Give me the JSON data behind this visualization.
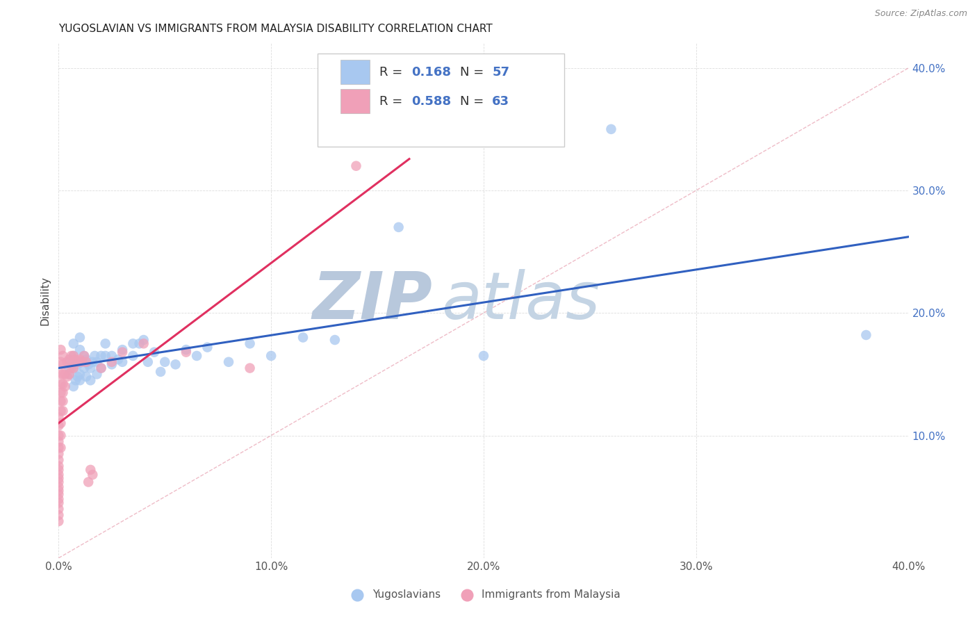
{
  "title": "YUGOSLAVIAN VS IMMIGRANTS FROM MALAYSIA DISABILITY CORRELATION CHART",
  "source": "Source: ZipAtlas.com",
  "ylabel": "Disability",
  "xlim": [
    0.0,
    0.4
  ],
  "ylim": [
    0.0,
    0.42
  ],
  "yticks": [
    0.0,
    0.1,
    0.2,
    0.3,
    0.4
  ],
  "xticks": [
    0.0,
    0.1,
    0.2,
    0.3,
    0.4
  ],
  "xtick_labels": [
    "0.0%",
    "10.0%",
    "20.0%",
    "30.0%",
    "40.0%"
  ],
  "ytick_labels_right": [
    "",
    "10.0%",
    "20.0%",
    "30.0%",
    "40.0%"
  ],
  "blue_R": 0.168,
  "blue_N": 57,
  "pink_R": 0.588,
  "pink_N": 63,
  "blue_color": "#A8C8F0",
  "pink_color": "#F0A0B8",
  "blue_line_color": "#3060C0",
  "pink_line_color": "#E03060",
  "diag_line_color": "#E8A0B0",
  "watermark_zip_color": "#C0D0E8",
  "watermark_atlas_color": "#B8CCE4",
  "legend_label_blue": "Yugoslavians",
  "legend_label_pink": "Immigrants from Malaysia",
  "blue_scatter_x": [
    0.005,
    0.005,
    0.005,
    0.007,
    0.007,
    0.007,
    0.007,
    0.008,
    0.008,
    0.009,
    0.009,
    0.01,
    0.01,
    0.01,
    0.01,
    0.01,
    0.012,
    0.012,
    0.013,
    0.013,
    0.014,
    0.015,
    0.015,
    0.016,
    0.017,
    0.018,
    0.018,
    0.02,
    0.02,
    0.022,
    0.022,
    0.025,
    0.025,
    0.028,
    0.03,
    0.03,
    0.035,
    0.035,
    0.038,
    0.04,
    0.042,
    0.045,
    0.048,
    0.05,
    0.055,
    0.06,
    0.065,
    0.07,
    0.08,
    0.09,
    0.1,
    0.115,
    0.13,
    0.16,
    0.2,
    0.26,
    0.38
  ],
  "blue_scatter_y": [
    0.15,
    0.155,
    0.16,
    0.14,
    0.155,
    0.165,
    0.175,
    0.145,
    0.16,
    0.148,
    0.158,
    0.145,
    0.15,
    0.16,
    0.17,
    0.18,
    0.155,
    0.165,
    0.148,
    0.162,
    0.158,
    0.145,
    0.155,
    0.16,
    0.165,
    0.15,
    0.16,
    0.155,
    0.165,
    0.165,
    0.175,
    0.158,
    0.165,
    0.162,
    0.16,
    0.17,
    0.165,
    0.175,
    0.175,
    0.178,
    0.16,
    0.168,
    0.152,
    0.16,
    0.158,
    0.17,
    0.165,
    0.172,
    0.16,
    0.175,
    0.165,
    0.18,
    0.178,
    0.27,
    0.165,
    0.35,
    0.182
  ],
  "pink_scatter_x": [
    0.0,
    0.0,
    0.0,
    0.0,
    0.0,
    0.0,
    0.0,
    0.0,
    0.0,
    0.0,
    0.0,
    0.0,
    0.0,
    0.0,
    0.0,
    0.0,
    0.0,
    0.0,
    0.0,
    0.0,
    0.001,
    0.001,
    0.001,
    0.001,
    0.001,
    0.001,
    0.001,
    0.001,
    0.001,
    0.001,
    0.002,
    0.002,
    0.002,
    0.002,
    0.002,
    0.002,
    0.002,
    0.003,
    0.003,
    0.004,
    0.004,
    0.005,
    0.005,
    0.006,
    0.006,
    0.007,
    0.007,
    0.008,
    0.009,
    0.01,
    0.011,
    0.012,
    0.013,
    0.014,
    0.015,
    0.016,
    0.02,
    0.025,
    0.03,
    0.04,
    0.06,
    0.09,
    0.14
  ],
  "pink_scatter_y": [
    0.03,
    0.035,
    0.04,
    0.045,
    0.048,
    0.052,
    0.055,
    0.058,
    0.062,
    0.065,
    0.068,
    0.072,
    0.075,
    0.08,
    0.085,
    0.09,
    0.095,
    0.1,
    0.108,
    0.115,
    0.09,
    0.1,
    0.11,
    0.12,
    0.128,
    0.135,
    0.142,
    0.15,
    0.16,
    0.17,
    0.12,
    0.128,
    0.135,
    0.142,
    0.15,
    0.158,
    0.165,
    0.14,
    0.15,
    0.148,
    0.16,
    0.15,
    0.162,
    0.155,
    0.165,
    0.155,
    0.165,
    0.162,
    0.16,
    0.162,
    0.16,
    0.165,
    0.16,
    0.062,
    0.072,
    0.068,
    0.155,
    0.16,
    0.168,
    0.175,
    0.168,
    0.155,
    0.32
  ]
}
